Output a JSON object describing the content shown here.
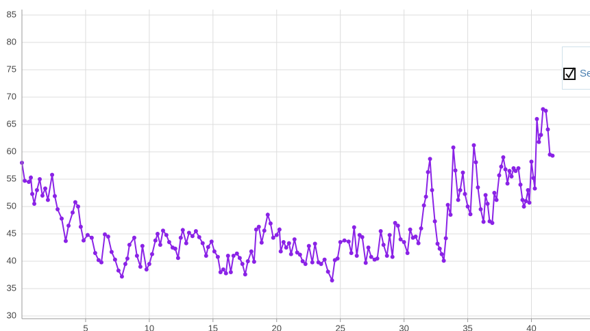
{
  "chart_data": {
    "type": "line",
    "x": [
      0,
      0.22,
      0.54,
      0.7,
      0.81,
      0.97,
      1.18,
      1.4,
      1.61,
      1.83,
      2.04,
      2.37,
      2.58,
      2.8,
      3.12,
      3.44,
      3.66,
      3.98,
      4.19,
      4.41,
      4.62,
      4.84,
      5.16,
      5.48,
      5.75,
      6.02,
      6.24,
      6.51,
      6.77,
      7.04,
      7.31,
      7.58,
      7.85,
      8.12,
      8.28,
      8.44,
      8.82,
      9.03,
      9.3,
      9.46,
      9.78,
      10.0,
      10.22,
      10.48,
      10.65,
      10.86,
      11.08,
      11.34,
      11.56,
      11.83,
      12.04,
      12.26,
      12.47,
      12.63,
      12.9,
      13.12,
      13.39,
      13.66,
      13.92,
      14.19,
      14.46,
      14.62,
      14.89,
      15.11,
      15.38,
      15.59,
      15.81,
      16.02,
      16.18,
      16.4,
      16.61,
      16.88,
      17.1,
      17.31,
      17.53,
      17.74,
      18.01,
      18.23,
      18.39,
      18.6,
      18.82,
      19.03,
      19.3,
      19.52,
      19.73,
      20.0,
      20.22,
      20.32,
      20.54,
      20.75,
      20.97,
      21.13,
      21.4,
      21.61,
      21.83,
      22.04,
      22.26,
      22.53,
      22.8,
      23.01,
      23.28,
      23.49,
      23.76,
      24.03,
      24.35,
      24.57,
      24.78,
      25.0,
      25.32,
      25.65,
      25.86,
      26.08,
      26.29,
      26.51,
      26.72,
      26.99,
      27.2,
      27.42,
      27.69,
      27.9,
      28.17,
      28.39,
      28.66,
      28.87,
      29.09,
      29.3,
      29.52,
      29.73,
      30.0,
      30.27,
      30.48,
      30.7,
      30.91,
      31.13,
      31.34,
      31.56,
      31.72,
      31.88,
      32.04,
      32.2,
      32.42,
      32.63,
      32.8,
      32.96,
      33.12,
      33.28,
      33.44,
      33.65,
      33.87,
      34.03,
      34.25,
      34.41,
      34.62,
      34.78,
      35.0,
      35.21,
      35.48,
      35.64,
      35.8,
      36.02,
      36.24,
      36.4,
      36.56,
      36.72,
      36.93,
      37.09,
      37.26,
      37.47,
      37.63,
      37.79,
      37.96,
      38.12,
      38.28,
      38.44,
      38.6,
      38.76,
      38.98,
      39.14,
      39.3,
      39.41,
      39.57,
      39.73,
      39.84,
      40.0,
      40.16,
      40.27,
      40.43,
      40.59,
      40.75,
      40.91,
      41.13,
      41.29,
      41.45,
      41.66
    ],
    "series": [
      {
        "name": "Se",
        "color": "#8a22e6",
        "values": [
          58,
          54.7,
          54.5,
          55.3,
          52.3,
          50.5,
          53,
          55,
          52,
          53.3,
          51.2,
          55.8,
          51.9,
          49.5,
          47.8,
          43.7,
          46.5,
          48.9,
          50.8,
          50,
          46.3,
          43.8,
          44.8,
          44.3,
          41.5,
          40.2,
          39.8,
          44.9,
          44.5,
          41.7,
          40.3,
          38.3,
          37.2,
          39.5,
          40.5,
          43,
          44.3,
          41,
          39,
          42.8,
          38.5,
          39.5,
          41.3,
          43.8,
          45,
          43,
          45.6,
          44.8,
          43.5,
          42.5,
          42.3,
          40.6,
          44.3,
          45.7,
          43.3,
          45.2,
          44.6,
          45.5,
          44.4,
          43.3,
          41,
          42.6,
          43.6,
          41.8,
          40.8,
          38,
          38.5,
          37.8,
          41,
          38,
          41,
          41.4,
          40.6,
          39.5,
          37.6,
          40,
          41.8,
          39.9,
          45.8,
          46.3,
          43.4,
          45.6,
          48.5,
          46.9,
          44.3,
          44.8,
          45.8,
          41.8,
          43.5,
          42.5,
          43.3,
          41.3,
          44,
          41.6,
          41.2,
          40,
          39.5,
          42.8,
          39.8,
          43.2,
          39.8,
          39.5,
          40.3,
          38.1,
          36.5,
          40.2,
          40.5,
          43.5,
          43.8,
          43.6,
          41.5,
          46.2,
          41,
          44.8,
          44.4,
          39.7,
          42.5,
          40.8,
          40.3,
          40.5,
          45.5,
          43,
          41,
          44.8,
          40.8,
          47,
          46.5,
          44,
          43.5,
          41.5,
          45.8,
          44.3,
          44.5,
          43.3,
          46,
          50.2,
          51.8,
          56.3,
          58.7,
          53,
          47.3,
          43.2,
          42.3,
          41.3,
          40.1,
          44.2,
          50.3,
          48.5,
          60.8,
          56.6,
          51.2,
          53,
          56.2,
          52.3,
          50,
          48.6,
          61.2,
          58.1,
          53.5,
          49.5,
          47.2,
          52.1,
          50.5,
          47.3,
          47,
          52.5,
          51.2,
          55.7,
          57.3,
          59,
          56.8,
          54.2,
          56.5,
          55.5,
          57,
          56.5,
          57,
          54,
          51.2,
          50,
          51,
          53,
          50.7,
          58.2,
          55.2,
          53.3,
          66,
          61.8,
          63.1,
          67.8,
          67.5,
          64.1,
          59.5,
          59.3
        ]
      }
    ],
    "xlim": [
      0,
      44.6
    ],
    "xticks": [
      5,
      10,
      15,
      20,
      25,
      30,
      35,
      40
    ],
    "ylim": [
      29.5,
      86
    ],
    "yticks": [
      30,
      35,
      40,
      45,
      50,
      55,
      60,
      65,
      70,
      75,
      80,
      85
    ],
    "grid": true,
    "legend": "right"
  }
}
